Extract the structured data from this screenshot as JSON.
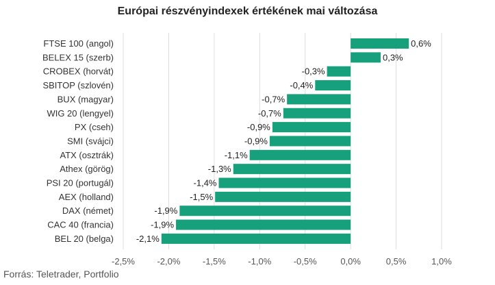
{
  "title": "Európai részvényindexek értékének mai változása",
  "source": "Forrás: Teletrader, Portfolio",
  "colors": {
    "bar": "#17a07c",
    "grid": "#dedede",
    "text": "#333333"
  },
  "chart_data": {
    "type": "bar",
    "orientation": "horizontal",
    "title": "Európai részvényindexek értékének mai változása",
    "categories": [
      "FTSE 100 (angol)",
      "BELEX 15 (szerb)",
      "CROBEX (horvát)",
      "SBITOP (szlovén)",
      "BUX (magyar)",
      "WIG 20 (lengyel)",
      "PX (cseh)",
      "SMI (svájci)",
      "ATX (osztrák)",
      "Athex (görög)",
      "PSI 20 (portugál)",
      "AEX (holland)",
      "DAX (német)",
      "CAC 40 (francia)",
      "BEL 20 (belga)"
    ],
    "values": [
      0.64,
      0.33,
      -0.26,
      -0.39,
      -0.7,
      -0.74,
      -0.86,
      -0.89,
      -1.11,
      -1.29,
      -1.45,
      -1.49,
      -1.88,
      -1.92,
      -2.08
    ],
    "data_labels": [
      "0,6%",
      "0,3%",
      "-0,3%",
      "-0,4%",
      "-0,7%",
      "-0,7%",
      "-0,9%",
      "-0,9%",
      "-1,1%",
      "-1,3%",
      "-1,4%",
      "-1,5%",
      "-1,9%",
      "-1,9%",
      "-2,1%"
    ],
    "xlim": [
      -2.5,
      1.0
    ],
    "xticks": [
      -2.5,
      -2.0,
      -1.5,
      -1.0,
      -0.5,
      0.0,
      0.5,
      1.0
    ],
    "xtick_labels": [
      "-2,5%",
      "-2,0%",
      "-1,5%",
      "-1,0%",
      "-0,5%",
      "0,0%",
      "0,5%",
      "1,0%"
    ],
    "grid": "vertical"
  }
}
